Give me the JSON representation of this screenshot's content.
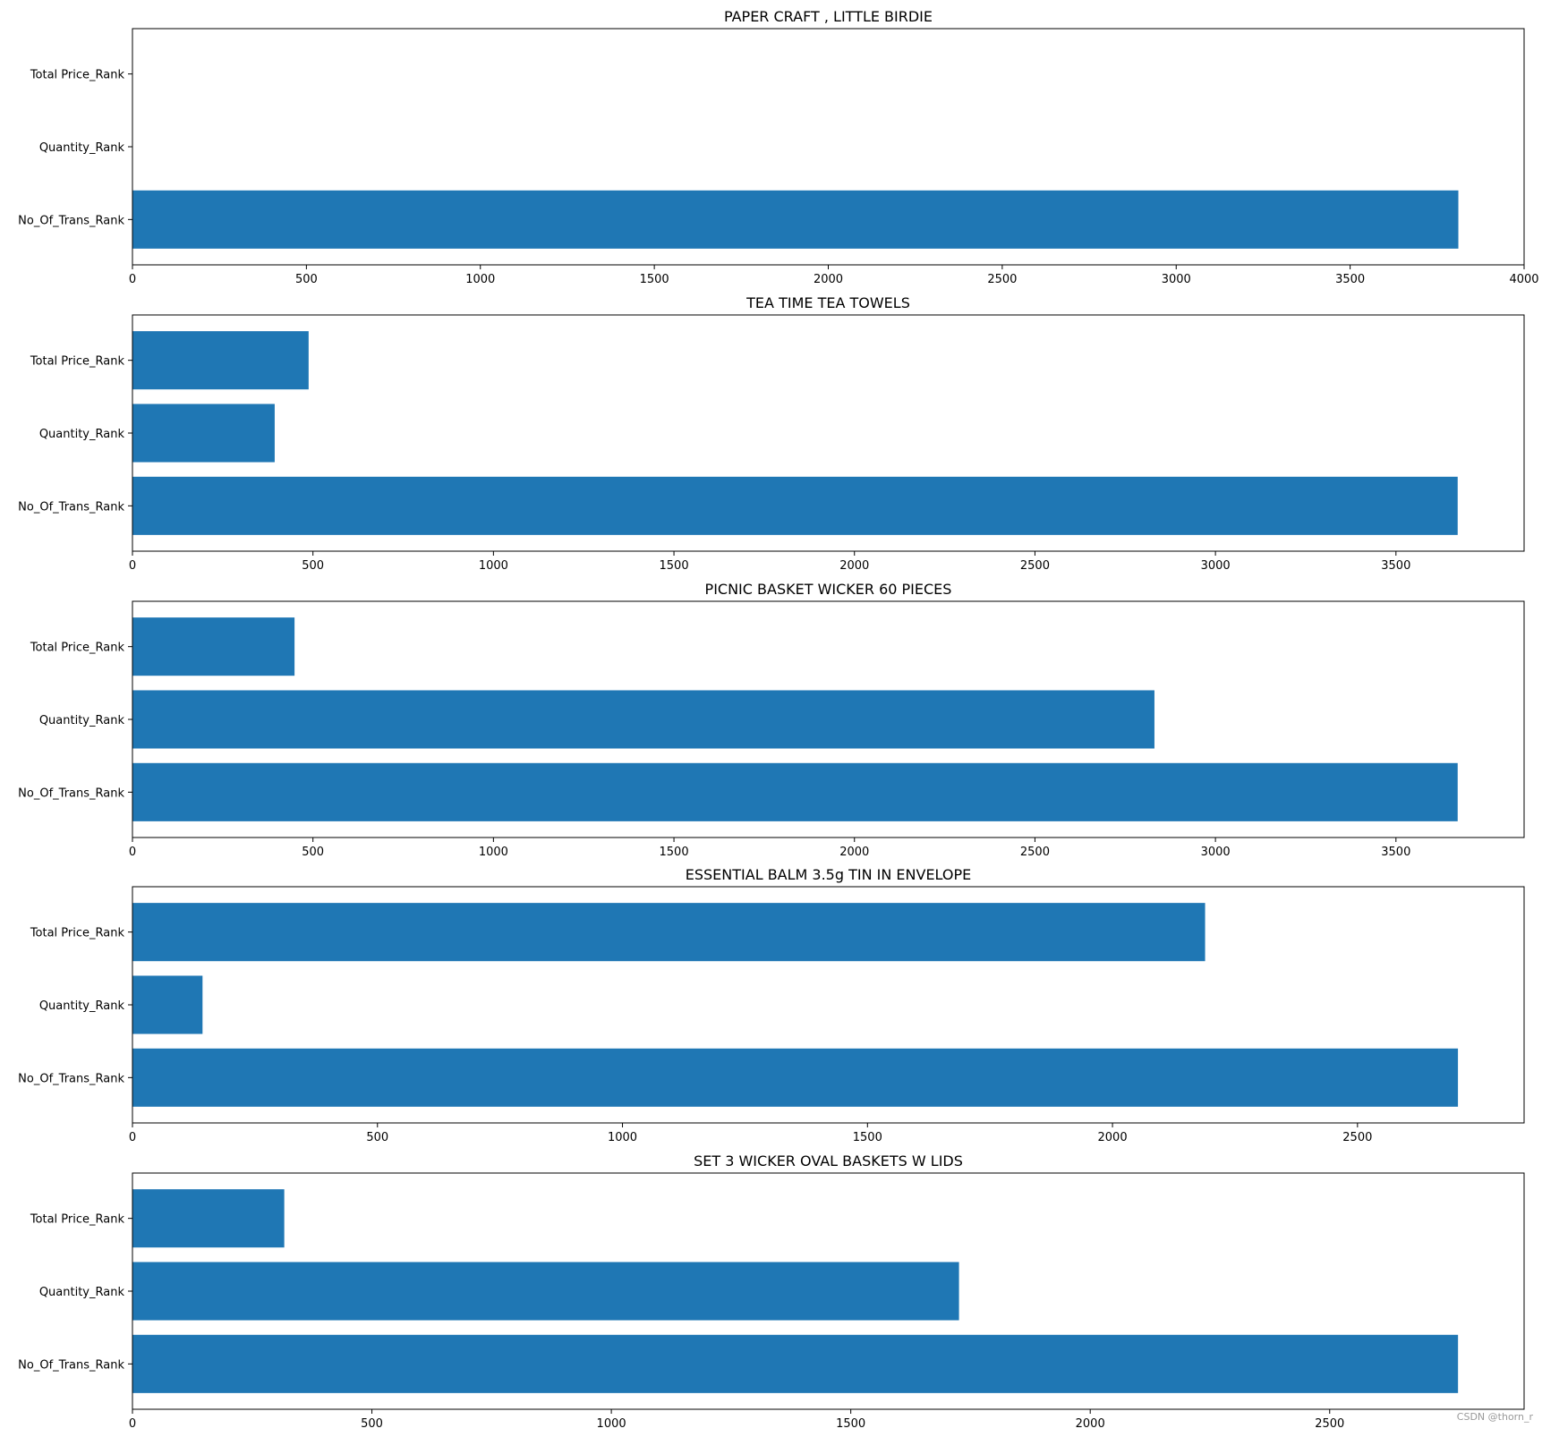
{
  "watermark": "CSDN @thorn_r",
  "colors": {
    "bar": "#1f77b4",
    "axis": "#000000",
    "background": "#ffffff"
  },
  "chart_data": [
    {
      "type": "bar",
      "orientation": "horizontal",
      "title": "PAPER CRAFT , LITTLE BIRDIE",
      "categories": [
        "No_Of_Trans_Rank",
        "Quantity_Rank",
        "Total Price_Rank"
      ],
      "values": [
        3811,
        1,
        1
      ],
      "xlim": [
        0,
        4000
      ],
      "xticks": [
        0,
        500,
        1000,
        1500,
        2000,
        2500,
        3000,
        3500,
        4000
      ],
      "grid": false
    },
    {
      "type": "bar",
      "orientation": "horizontal",
      "title": "TEA TIME TEA TOWELS",
      "categories": [
        "No_Of_Trans_Rank",
        "Quantity_Rank",
        "Total Price_Rank"
      ],
      "values": [
        3671,
        394,
        488
      ],
      "xlim": [
        0,
        3855
      ],
      "xticks": [
        0,
        500,
        1000,
        1500,
        2000,
        2500,
        3000,
        3500
      ],
      "grid": false
    },
    {
      "type": "bar",
      "orientation": "horizontal",
      "title": "PICNIC BASKET WICKER 60 PIECES",
      "categories": [
        "No_Of_Trans_Rank",
        "Quantity_Rank",
        "Total Price_Rank"
      ],
      "values": [
        3671,
        2831,
        449
      ],
      "xlim": [
        0,
        3855
      ],
      "xticks": [
        0,
        500,
        1000,
        1500,
        2000,
        2500,
        3000,
        3500
      ],
      "grid": false
    },
    {
      "type": "bar",
      "orientation": "horizontal",
      "title": "ESSENTIAL BALM 3.5g TIN IN ENVELOPE",
      "categories": [
        "No_Of_Trans_Rank",
        "Quantity_Rank",
        "Total Price_Rank"
      ],
      "values": [
        2705,
        143,
        2189
      ],
      "xlim": [
        0,
        2840
      ],
      "xticks": [
        0,
        500,
        1000,
        1500,
        2000,
        2500
      ],
      "grid": false
    },
    {
      "type": "bar",
      "orientation": "horizontal",
      "title": "SET 3 WICKER OVAL BASKETS W LIDS",
      "categories": [
        "No_Of_Trans_Rank",
        "Quantity_Rank",
        "Total Price_Rank"
      ],
      "values": [
        2768,
        1726,
        317
      ],
      "xlim": [
        0,
        2906
      ],
      "xticks": [
        0,
        500,
        1000,
        1500,
        2000,
        2500
      ],
      "grid": false
    }
  ]
}
